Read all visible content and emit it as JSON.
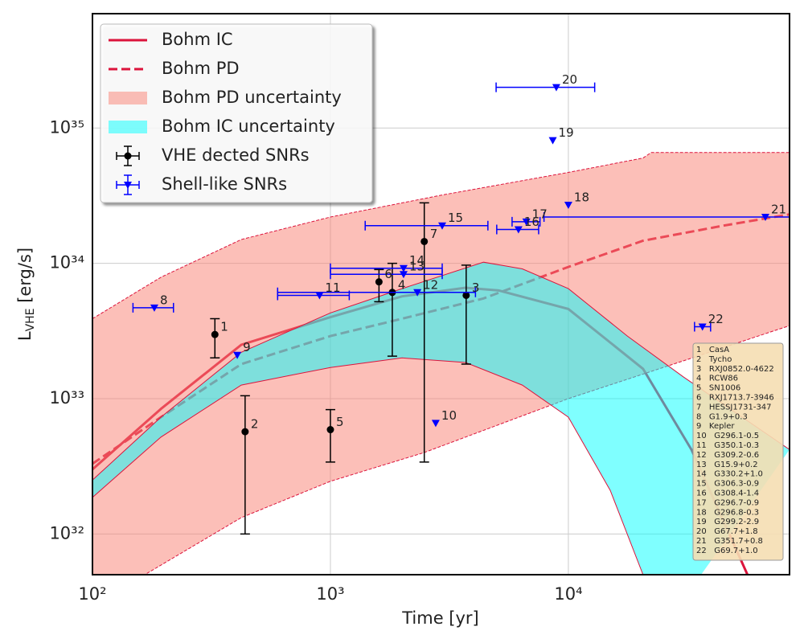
{
  "chart_data": {
    "type": "line",
    "xlabel": "Time [yr]",
    "ylabel_parts": [
      "L",
      "VHE",
      " [erg/s]"
    ],
    "xscale": "log",
    "yscale": "log",
    "xlim": [
      100,
      85000
    ],
    "ylim": [
      5e+31,
      7e+35
    ],
    "xticks": [
      {
        "value": 100,
        "label": "10²"
      },
      {
        "value": 1000,
        "label": "10³"
      },
      {
        "value": 10000,
        "label": "10⁴"
      }
    ],
    "yticks": [
      {
        "value": 1e+32,
        "label": "10³²"
      },
      {
        "value": 1e+33,
        "label": "10³³"
      },
      {
        "value": 1e+34,
        "label": "10³⁴"
      },
      {
        "value": 1e+35,
        "label": "10³⁵"
      }
    ],
    "grid": true,
    "legend": "upper left",
    "series": [
      {
        "name": "Bohm IC",
        "kind": "line",
        "style": "solid",
        "color": "#dc143c",
        "x": [
          100,
          194,
          422,
          1000,
          2000,
          3700,
          5100,
          10000,
          20600,
          32900,
          56600
        ],
        "values": [
          3e+32,
          8.4e+32,
          2.5e+33,
          4e+33,
          5.7e+33,
          6.6e+33,
          6.3e+33,
          4.6e+33,
          1.66e+33,
          4.2e+32,
          5e+31
        ]
      },
      {
        "name": "Bohm PD",
        "kind": "line",
        "style": "dashed",
        "color": "#dc143c",
        "x": [
          100,
          194,
          422,
          1000,
          2000,
          4400,
          10000,
          20600,
          44900,
          85000
        ],
        "values": [
          3.3e+32,
          7.3e+32,
          1.8e+33,
          2.9e+33,
          3.9e+33,
          5.5e+33,
          9.4e+33,
          1.47e+34,
          1.9e+34,
          2.3e+34
        ]
      },
      {
        "name": "Bohm PD uncertainty",
        "kind": "band",
        "color": "#fa8072",
        "alpha": 0.5,
        "edge_color": "#dc143c",
        "edge_style": "dashed",
        "x_upper": [
          100,
          194,
          422,
          1000,
          2950,
          10000,
          20600,
          22300,
          85000
        ],
        "upper": [
          3.9e+33,
          7.9e+33,
          1.5e+34,
          2.2e+34,
          3.2e+34,
          4.7e+34,
          6e+34,
          6.6e+34,
          6.6e+34
        ],
        "x_lower": [
          100,
          166,
          422,
          1000,
          2480,
          10000,
          30400,
          85000
        ],
        "lower": [
          3e+31,
          5e+31,
          1.32e+32,
          2.45e+32,
          4e+32,
          1e+33,
          1.9e+33,
          3.46e+33
        ]
      },
      {
        "name": "Bohm IC uncertainty",
        "kind": "band",
        "color": "#00ffff",
        "alpha": 0.5,
        "edge_color": "#dc143c",
        "edge_style": "solid",
        "x_upper": [
          100,
          194,
          422,
          1000,
          2000,
          4400,
          6400,
          10000,
          17700,
          30400,
          85000
        ],
        "upper": [
          2.5e+32,
          7.3e+32,
          2.2e+33,
          4.3e+33,
          6.5e+33,
          1.02e+34,
          9.1e+33,
          6.5e+33,
          2.9e+33,
          1.45e+33,
          4.2e+32
        ],
        "x_lower": [
          100,
          194,
          422,
          1000,
          2000,
          3700,
          6400,
          10000,
          15000,
          20600,
          25000
        ],
        "lower": [
          1.86e+32,
          5.2e+32,
          1.26e+33,
          1.7e+33,
          2e+33,
          1.85e+33,
          1.26e+33,
          7.3e+32,
          2.1e+32,
          5e+31,
          2e+31
        ]
      },
      {
        "name": "VHE dected SNRs",
        "kind": "errorbar",
        "marker": "o",
        "color": "#000000",
        "labels": [
          "1",
          "2",
          "3",
          "4",
          "5",
          "6",
          "7"
        ],
        "x": [
          327,
          438,
          3720,
          1820,
          1000,
          1600,
          2480
        ],
        "values": [
          2.98e+33,
          5.7e+32,
          5.8e+33,
          6.1e+33,
          5.9e+32,
          7.3e+33,
          1.45e+34
        ],
        "y_low": [
          2e+33,
          1e+32,
          1.8e+33,
          2.06e+33,
          3.4e+32,
          5.2e+33,
          3.4e+32
        ],
        "y_high": [
          3.9e+33,
          1.05e+33,
          9.7e+33,
          1e+34,
          8.3e+32,
          9e+33,
          2.8e+34
        ]
      },
      {
        "name": "Shell-like SNRs",
        "kind": "errorbar",
        "marker": "v",
        "color": "#0000ff",
        "labels": [
          "8",
          "9",
          "10",
          "11",
          "12",
          "13",
          "14",
          "15",
          "16",
          "17",
          "18",
          "19",
          "20",
          "21",
          "22"
        ],
        "x": [
          182,
          406,
          2770,
          900,
          2320,
          2030,
          2030,
          2950,
          6170,
          6660,
          10000,
          8600,
          8900,
          67300,
          36600
        ],
        "values": [
          4.7e+33,
          2.1e+33,
          6.6e+32,
          5.8e+33,
          6.1e+33,
          8.3e+33,
          9.2e+33,
          1.9e+34,
          1.78e+34,
          2.03e+34,
          2.7e+34,
          8.1e+34,
          2e+35,
          2.2e+34,
          3.4e+33
        ],
        "x_low": [
          148,
          null,
          null,
          600,
          600,
          1000,
          1000,
          1400,
          5000,
          5800,
          null,
          null,
          4970,
          7900,
          33900
        ],
        "x_high": [
          219,
          null,
          null,
          1200,
          4070,
          2950,
          2950,
          4590,
          7500,
          7600,
          null,
          null,
          12900,
          85000,
          39600
        ]
      }
    ],
    "annotation_lines": [
      "1   CasA",
      "2   Tycho",
      "3   RXJ0852.0-4622",
      "4   RCW86",
      "5   SN1006",
      "6   RXJ1713.7-3946",
      "7   HESSJ1731-347",
      "8   G1.9+0.3",
      "9   Kepler",
      "10   G296.1-0.5",
      "11   G350.1-0.3",
      "12   G309.2-0.6",
      "13   G15.9+0.2",
      "14   G330.2+1.0",
      "15   G306.3-0.9",
      "16   G308.4-1.4",
      "17   G296.7-0.9",
      "18   G296.8-0.3",
      "19   G299.2-2.9",
      "20   G67.7+1.8",
      "21   G351.7+0.8",
      "22   G69.7+1.0"
    ]
  }
}
